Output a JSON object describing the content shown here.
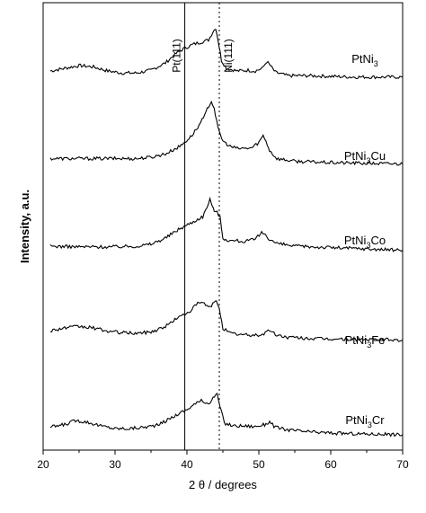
{
  "chart_data": {
    "type": "line",
    "title": "",
    "xlabel": "2 θ / degrees",
    "ylabel": "Intensity, a.u.",
    "xlim": [
      20,
      70
    ],
    "x_ticks": [
      20,
      30,
      40,
      50,
      60,
      70
    ],
    "y_ticks_shown": false,
    "grid": false,
    "legend": "none; series labelled inline at right",
    "reference_lines": [
      {
        "label": "Pt(111)",
        "x": 39.7,
        "style": "solid"
      },
      {
        "label": "Ni(111)",
        "x": 44.5,
        "style": "dotted"
      }
    ],
    "series": [
      {
        "name": "PtNi3",
        "label_main": "PtNi",
        "label_sub": "3",
        "label_tail": "",
        "points": [
          [
            21,
            0.12
          ],
          [
            23,
            0.16
          ],
          [
            25,
            0.2
          ],
          [
            27,
            0.18
          ],
          [
            29,
            0.12
          ],
          [
            31,
            0.09
          ],
          [
            33,
            0.09
          ],
          [
            35,
            0.13
          ],
          [
            37,
            0.24
          ],
          [
            38.5,
            0.38
          ],
          [
            39.7,
            0.46
          ],
          [
            41,
            0.52
          ],
          [
            42,
            0.55
          ],
          [
            43,
            0.58
          ],
          [
            43.6,
            0.7
          ],
          [
            44,
            0.76
          ],
          [
            44.3,
            0.6
          ],
          [
            44.8,
            0.28
          ],
          [
            45.5,
            0.16
          ],
          [
            47,
            0.12
          ],
          [
            48.5,
            0.13
          ],
          [
            49.5,
            0.12
          ],
          [
            50.5,
            0.16
          ],
          [
            51.1,
            0.26
          ],
          [
            51.6,
            0.2
          ],
          [
            52.3,
            0.1
          ],
          [
            54,
            0.05
          ],
          [
            57,
            0.05
          ],
          [
            60,
            0.04
          ],
          [
            63,
            0.03
          ],
          [
            66,
            0.03
          ],
          [
            70,
            0.03
          ]
        ]
      },
      {
        "name": "PtNi3Cu",
        "label_main": "PtNi",
        "label_sub": "3",
        "label_tail": "Cu",
        "points": [
          [
            21,
            0.1
          ],
          [
            25,
            0.1
          ],
          [
            29,
            0.1
          ],
          [
            33,
            0.1
          ],
          [
            35,
            0.12
          ],
          [
            37,
            0.17
          ],
          [
            39,
            0.28
          ],
          [
            40.5,
            0.42
          ],
          [
            41.5,
            0.56
          ],
          [
            42.5,
            0.74
          ],
          [
            43,
            0.88
          ],
          [
            43.4,
            0.95
          ],
          [
            43.8,
            0.85
          ],
          [
            44.3,
            0.55
          ],
          [
            45,
            0.36
          ],
          [
            46,
            0.28
          ],
          [
            47,
            0.25
          ],
          [
            48,
            0.25
          ],
          [
            49,
            0.26
          ],
          [
            50,
            0.34
          ],
          [
            50.6,
            0.44
          ],
          [
            51,
            0.36
          ],
          [
            51.5,
            0.22
          ],
          [
            52.5,
            0.1
          ],
          [
            55,
            0.06
          ],
          [
            60,
            0.04
          ],
          [
            65,
            0.03
          ],
          [
            70,
            0.02
          ]
        ]
      },
      {
        "name": "PtNi3Co",
        "label_main": "PtNi",
        "label_sub": "3",
        "label_tail": "Co",
        "points": [
          [
            21,
            0.12
          ],
          [
            25,
            0.11
          ],
          [
            29,
            0.11
          ],
          [
            33,
            0.12
          ],
          [
            35,
            0.15
          ],
          [
            37,
            0.24
          ],
          [
            39,
            0.38
          ],
          [
            40.5,
            0.46
          ],
          [
            41.5,
            0.52
          ],
          [
            42.2,
            0.56
          ],
          [
            42.8,
            0.7
          ],
          [
            43.2,
            0.83
          ],
          [
            43.5,
            0.7
          ],
          [
            43.8,
            0.66
          ],
          [
            44.2,
            0.62
          ],
          [
            44.6,
            0.55
          ],
          [
            45,
            0.24
          ],
          [
            46,
            0.2
          ],
          [
            47,
            0.2
          ],
          [
            48,
            0.19
          ],
          [
            49.5,
            0.22
          ],
          [
            50.4,
            0.32
          ],
          [
            50.9,
            0.3
          ],
          [
            51.5,
            0.22
          ],
          [
            52.5,
            0.16
          ],
          [
            55,
            0.12
          ],
          [
            60,
            0.1
          ],
          [
            65,
            0.08
          ],
          [
            70,
            0.06
          ]
        ]
      },
      {
        "name": "PtNi3Fe",
        "label_main": "PtNi",
        "label_sub": "3",
        "label_tail": "Fe",
        "points": [
          [
            21,
            0.16
          ],
          [
            23,
            0.2
          ],
          [
            25,
            0.22
          ],
          [
            27,
            0.2
          ],
          [
            29,
            0.15
          ],
          [
            31,
            0.13
          ],
          [
            33,
            0.12
          ],
          [
            35,
            0.14
          ],
          [
            37,
            0.22
          ],
          [
            38.5,
            0.34
          ],
          [
            39.7,
            0.4
          ],
          [
            40.5,
            0.46
          ],
          [
            41.5,
            0.56
          ],
          [
            42.2,
            0.58
          ],
          [
            43,
            0.5
          ],
          [
            43.6,
            0.55
          ],
          [
            44.1,
            0.6
          ],
          [
            44.5,
            0.5
          ],
          [
            45,
            0.2
          ],
          [
            46,
            0.12
          ],
          [
            47.5,
            0.1
          ],
          [
            49,
            0.09
          ],
          [
            50.5,
            0.1
          ],
          [
            51.5,
            0.17
          ],
          [
            52.3,
            0.1
          ],
          [
            54,
            0.06
          ],
          [
            58,
            0.04
          ],
          [
            63,
            0.03
          ],
          [
            70,
            0.02
          ]
        ]
      },
      {
        "name": "PtNi3Cr",
        "label_main": "PtNi",
        "label_sub": "3",
        "label_tail": "Cr",
        "points": [
          [
            21,
            0.14
          ],
          [
            23,
            0.18
          ],
          [
            24.5,
            0.24
          ],
          [
            26,
            0.22
          ],
          [
            28,
            0.16
          ],
          [
            30,
            0.12
          ],
          [
            32,
            0.12
          ],
          [
            34,
            0.14
          ],
          [
            36,
            0.17
          ],
          [
            37.5,
            0.26
          ],
          [
            39,
            0.35
          ],
          [
            40,
            0.4
          ],
          [
            41,
            0.48
          ],
          [
            42,
            0.53
          ],
          [
            42.8,
            0.5
          ],
          [
            43.3,
            0.52
          ],
          [
            43.8,
            0.6
          ],
          [
            44.2,
            0.62
          ],
          [
            44.6,
            0.45
          ],
          [
            45.2,
            0.2
          ],
          [
            46.5,
            0.16
          ],
          [
            48,
            0.16
          ],
          [
            49.5,
            0.15
          ],
          [
            50.8,
            0.18
          ],
          [
            51.5,
            0.22
          ],
          [
            52.3,
            0.14
          ],
          [
            54,
            0.1
          ],
          [
            57,
            0.07
          ],
          [
            61,
            0.05
          ],
          [
            65,
            0.04
          ],
          [
            70,
            0.03
          ]
        ]
      }
    ]
  }
}
